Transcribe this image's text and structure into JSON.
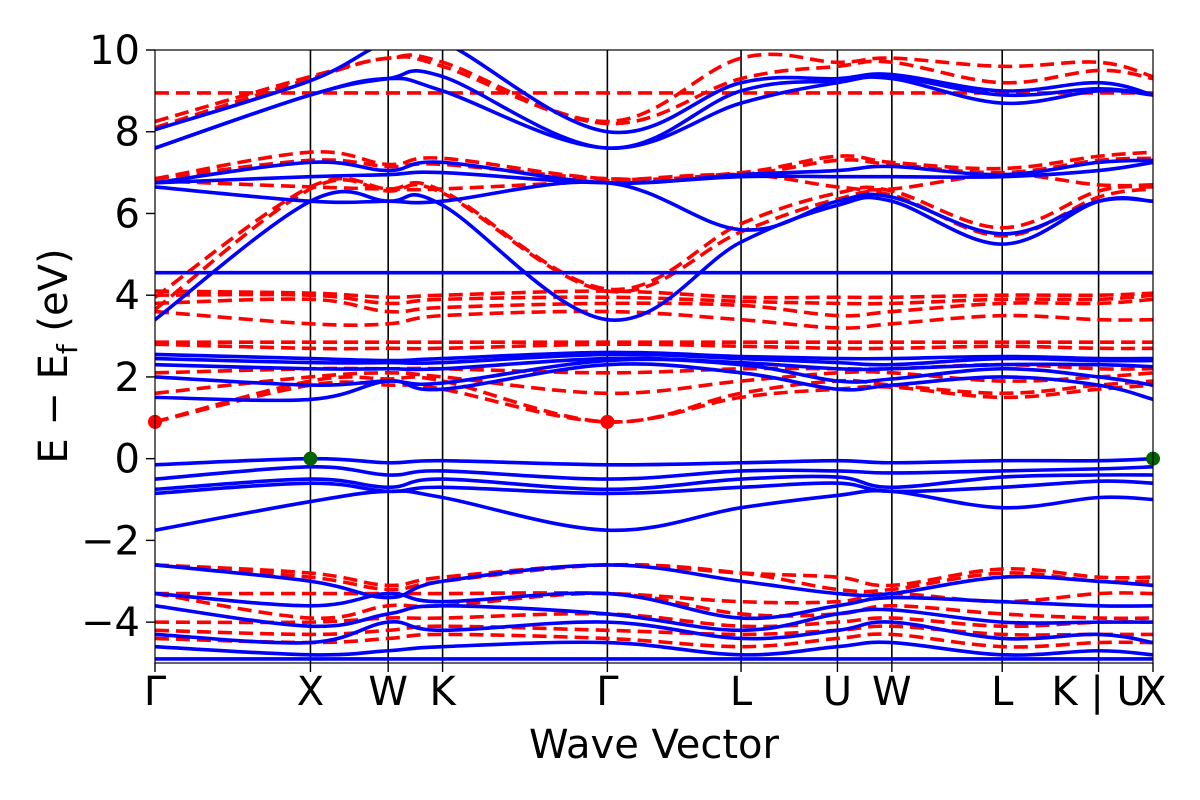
{
  "chart_data": {
    "type": "line",
    "xlabel": "Wave Vector",
    "ylabel": "E − E_f (eV)",
    "ylabel_parts": {
      "prefix": "E − E",
      "sub": "f",
      "suffix": " (eV)"
    },
    "ylim": [
      -5,
      10
    ],
    "yticks": [
      {
        "value": -4,
        "label": "−4"
      },
      {
        "value": -2,
        "label": "−2"
      },
      {
        "value": 0,
        "label": "0"
      },
      {
        "value": 2,
        "label": "2"
      },
      {
        "value": 4,
        "label": "4"
      },
      {
        "value": 6,
        "label": "6"
      },
      {
        "value": 8,
        "label": "8"
      },
      {
        "value": 10,
        "label": "10"
      }
    ],
    "xlim": [
      0,
      6.42
    ],
    "kpoints": [
      {
        "label": "Γ",
        "x": 0.0
      },
      {
        "label": "X",
        "x": 1.0
      },
      {
        "label": "W",
        "x": 1.5
      },
      {
        "label": "K",
        "x": 1.85
      },
      {
        "label": "Γ",
        "x": 2.91
      },
      {
        "label": "L",
        "x": 3.77
      },
      {
        "label": "U",
        "x": 4.39
      },
      {
        "label": "W",
        "x": 4.74
      },
      {
        "label": "L",
        "x": 5.45
      },
      {
        "label": "K | U",
        "x": 6.07
      },
      {
        "label": "X",
        "x": 6.42
      }
    ],
    "grid": false,
    "series": [
      {
        "style": "solid",
        "color": "#0000ff",
        "bands": [
          [
            -4.9,
            -4.9,
            -4.9,
            -4.9,
            -4.9,
            -4.9,
            -4.9,
            -4.9,
            -4.9,
            -4.9,
            -4.9
          ],
          [
            -4.6,
            -4.8,
            -4.7,
            -4.6,
            -4.5,
            -4.8,
            -4.6,
            -4.5,
            -4.8,
            -4.7,
            -4.8
          ],
          [
            -4.3,
            -4.5,
            -4.0,
            -4.2,
            -4.0,
            -4.4,
            -4.2,
            -4.0,
            -4.4,
            -4.3,
            -4.5
          ],
          [
            -3.6,
            -4.1,
            -3.8,
            -3.6,
            -3.8,
            -4.2,
            -3.8,
            -3.7,
            -4.0,
            -4.0,
            -4.0
          ],
          [
            -3.3,
            -3.6,
            -3.3,
            -3.5,
            -3.3,
            -3.9,
            -3.6,
            -3.4,
            -3.5,
            -3.6,
            -3.6
          ],
          [
            -2.6,
            -3.0,
            -3.4,
            -3.0,
            -2.6,
            -3.0,
            -3.3,
            -3.3,
            -2.9,
            -3.0,
            -3.1
          ],
          [
            -1.75,
            -1.05,
            -0.8,
            -0.95,
            -1.75,
            -1.2,
            -0.9,
            -0.8,
            -1.2,
            -0.95,
            -1.0
          ],
          [
            -0.85,
            -0.6,
            -0.8,
            -0.7,
            -0.85,
            -0.7,
            -0.6,
            -0.8,
            -0.7,
            -0.55,
            -0.6
          ],
          [
            -0.75,
            -0.5,
            -0.7,
            -0.5,
            -0.75,
            -0.5,
            -0.45,
            -0.7,
            -0.45,
            -0.4,
            -0.4
          ],
          [
            -0.5,
            -0.2,
            -0.4,
            -0.3,
            -0.5,
            -0.3,
            -0.3,
            -0.35,
            -0.3,
            -0.25,
            -0.2
          ],
          [
            -0.15,
            0.0,
            -0.1,
            -0.05,
            -0.15,
            -0.1,
            -0.05,
            -0.1,
            -0.05,
            -0.05,
            0.0
          ],
          [
            1.5,
            1.45,
            1.9,
            1.7,
            2.3,
            2.1,
            1.7,
            1.8,
            2.0,
            1.8,
            1.45
          ],
          [
            2.0,
            1.8,
            1.9,
            1.85,
            2.4,
            2.3,
            1.9,
            1.95,
            2.2,
            2.0,
            1.8
          ],
          [
            2.3,
            2.2,
            2.2,
            2.2,
            2.45,
            2.35,
            2.2,
            2.2,
            2.3,
            2.3,
            2.25
          ],
          [
            2.45,
            2.35,
            2.35,
            2.35,
            2.55,
            2.45,
            2.35,
            2.3,
            2.45,
            2.4,
            2.4
          ],
          [
            2.55,
            2.45,
            2.4,
            2.45,
            2.6,
            2.5,
            2.45,
            2.45,
            2.5,
            2.45,
            2.45
          ],
          [
            3.4,
            6.3,
            6.3,
            6.2,
            3.4,
            5.3,
            6.2,
            6.3,
            5.25,
            6.3,
            6.3
          ],
          [
            4.55,
            4.55,
            4.55,
            4.55,
            4.55,
            4.55,
            4.55,
            4.55,
            4.55,
            4.55,
            4.55
          ],
          [
            6.65,
            6.3,
            6.3,
            6.3,
            6.75,
            5.6,
            6.3,
            6.4,
            5.5,
            6.3,
            6.3
          ],
          [
            6.75,
            6.9,
            6.95,
            7.0,
            6.75,
            6.9,
            6.9,
            6.9,
            6.9,
            7.05,
            7.25
          ],
          [
            6.75,
            7.25,
            7.05,
            7.25,
            6.75,
            6.95,
            7.05,
            7.15,
            6.95,
            7.25,
            7.3
          ],
          [
            7.6,
            8.9,
            9.3,
            9.0,
            7.6,
            8.7,
            9.2,
            9.3,
            8.7,
            9.0,
            8.9
          ],
          [
            7.6,
            8.9,
            9.3,
            9.35,
            7.6,
            9.0,
            9.25,
            9.35,
            8.9,
            9.05,
            8.9
          ],
          [
            8.05,
            9.25,
            10.2,
            10.2,
            8.0,
            9.2,
            9.3,
            9.4,
            9.0,
            9.2,
            8.9
          ]
        ]
      },
      {
        "style": "dashed",
        "color": "#ff0000",
        "bands": [
          [
            -4.4,
            -4.5,
            -4.4,
            -4.3,
            -4.4,
            -4.6,
            -4.4,
            -4.3,
            -4.6,
            -4.5,
            -4.5
          ],
          [
            -4.2,
            -4.3,
            -4.2,
            -4.1,
            -4.2,
            -4.3,
            -4.2,
            -4.1,
            -4.3,
            -4.3,
            -4.3
          ],
          [
            -4.0,
            -4.0,
            -3.9,
            -3.9,
            -3.8,
            -4.1,
            -4.0,
            -3.9,
            -4.1,
            -4.0,
            -4.0
          ],
          [
            -3.3,
            -3.9,
            -3.6,
            -3.6,
            -3.3,
            -3.8,
            -3.8,
            -3.6,
            -3.8,
            -3.9,
            -3.9
          ],
          [
            -3.3,
            -3.3,
            -3.3,
            -3.3,
            -3.3,
            -3.5,
            -3.5,
            -3.3,
            -3.5,
            -3.3,
            -3.3
          ],
          [
            -2.6,
            -2.9,
            -3.2,
            -3.0,
            -2.6,
            -2.8,
            -3.2,
            -3.2,
            -2.8,
            -3.0,
            -3.0
          ],
          [
            -2.6,
            -2.8,
            -3.1,
            -2.9,
            -2.6,
            -2.8,
            -2.9,
            -3.1,
            -2.7,
            -2.9,
            -2.9
          ],
          [
            0.9,
            1.8,
            1.8,
            1.7,
            0.9,
            1.5,
            1.7,
            1.75,
            1.5,
            1.7,
            1.8
          ],
          [
            0.9,
            1.9,
            1.95,
            1.9,
            0.9,
            1.6,
            1.9,
            1.8,
            1.6,
            1.8,
            1.9
          ],
          [
            1.6,
            2.0,
            2.1,
            2.0,
            1.6,
            1.9,
            2.1,
            2.1,
            1.9,
            2.0,
            2.1
          ],
          [
            2.1,
            2.2,
            2.2,
            2.2,
            2.1,
            2.2,
            2.2,
            2.2,
            2.3,
            2.2,
            2.2
          ],
          [
            2.8,
            2.7,
            2.7,
            2.7,
            2.8,
            2.75,
            2.7,
            2.7,
            2.75,
            2.7,
            2.7
          ],
          [
            2.85,
            2.85,
            2.85,
            2.85,
            2.85,
            2.85,
            2.85,
            2.85,
            2.85,
            2.85,
            2.85
          ],
          [
            3.6,
            3.3,
            3.3,
            3.5,
            3.6,
            3.4,
            3.2,
            3.3,
            3.5,
            3.4,
            3.4
          ],
          [
            3.8,
            3.9,
            3.6,
            3.7,
            3.8,
            3.75,
            3.5,
            3.6,
            3.8,
            3.8,
            3.9
          ],
          [
            4.0,
            4.0,
            3.8,
            3.9,
            3.95,
            3.85,
            3.8,
            3.8,
            3.9,
            3.9,
            4.0
          ],
          [
            4.1,
            4.05,
            3.95,
            4.0,
            4.1,
            3.95,
            3.95,
            3.95,
            4.0,
            4.0,
            4.05
          ],
          [
            3.65,
            6.6,
            6.55,
            6.5,
            4.1,
            5.55,
            6.35,
            6.45,
            5.45,
            6.4,
            6.6
          ],
          [
            3.95,
            6.65,
            6.6,
            6.55,
            4.15,
            5.75,
            6.5,
            6.55,
            5.65,
            6.55,
            6.65
          ],
          [
            6.8,
            6.65,
            6.6,
            6.6,
            6.8,
            6.95,
            6.65,
            6.6,
            6.95,
            6.7,
            6.7
          ],
          [
            6.85,
            7.3,
            7.15,
            7.2,
            6.85,
            6.95,
            7.3,
            7.2,
            7.0,
            7.3,
            7.35
          ],
          [
            6.85,
            7.5,
            7.2,
            7.35,
            6.85,
            7.0,
            7.4,
            7.25,
            7.1,
            7.4,
            7.5
          ],
          [
            8.95,
            8.95,
            8.95,
            8.95,
            8.95,
            8.95,
            8.95,
            8.95,
            8.95,
            8.95,
            8.95
          ],
          [
            8.1,
            9.3,
            9.8,
            9.6,
            8.2,
            9.3,
            9.6,
            9.7,
            9.2,
            9.5,
            9.3
          ],
          [
            8.25,
            9.35,
            9.8,
            9.7,
            8.25,
            9.8,
            9.7,
            9.8,
            9.6,
            9.7,
            9.35
          ]
        ]
      }
    ],
    "markers": [
      {
        "x": 0.0,
        "y": 0.9,
        "color": "#ff0000"
      },
      {
        "x": 2.91,
        "y": 0.9,
        "color": "#ff0000"
      },
      {
        "x": 1.0,
        "y": 0.0,
        "color": "#006400"
      },
      {
        "x": 6.42,
        "y": 0.0,
        "color": "#006400"
      }
    ]
  }
}
